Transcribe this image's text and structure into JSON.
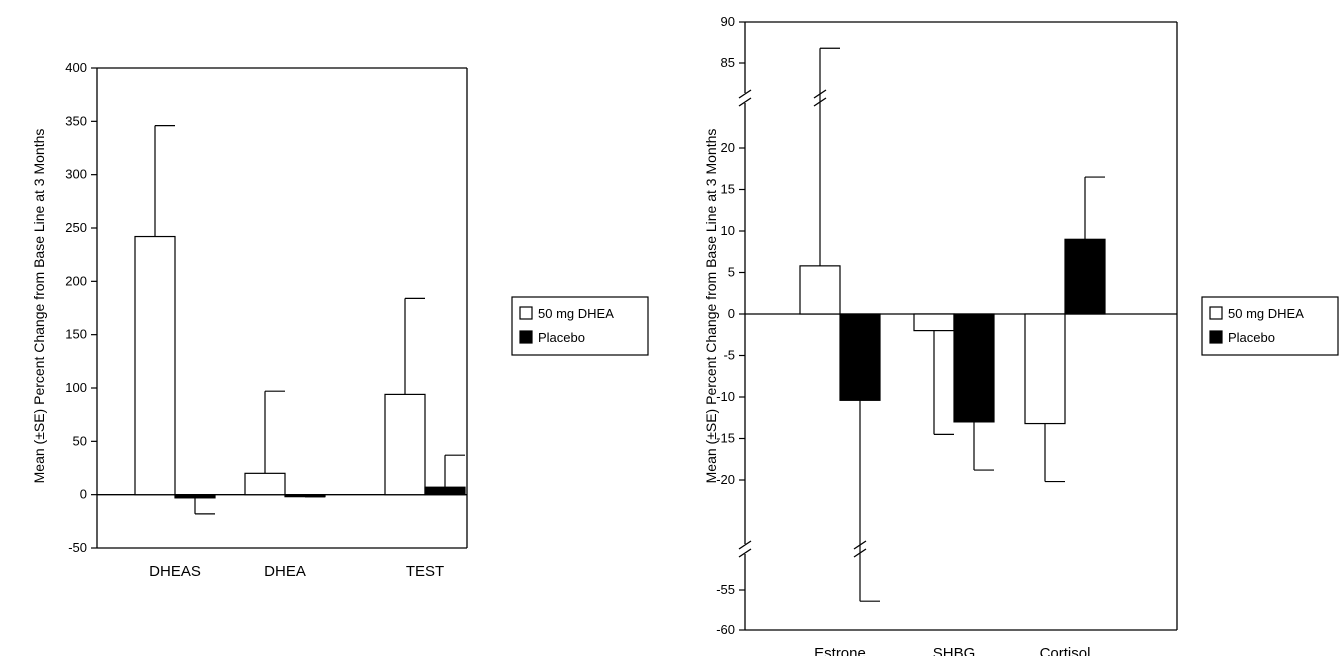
{
  "chart_data": [
    {
      "type": "bar",
      "title": "",
      "xlabel": "",
      "ylabel": "Mean (±SE) Percent Change from Base Line at 3 Months",
      "ylim": [
        -50,
        400
      ],
      "yticks": [
        -50,
        0,
        50,
        100,
        150,
        200,
        250,
        300,
        350,
        400
      ],
      "categories": [
        "DHEAS",
        "DHEA",
        "TEST"
      ],
      "legend_position": "right",
      "series": [
        {
          "name": "50 mg DHEA",
          "fill": "white",
          "values": [
            242,
            20,
            94
          ],
          "error_bars": [
            104,
            77,
            90
          ],
          "error_direction": "up"
        },
        {
          "name": "Placebo",
          "fill": "black",
          "values": [
            -3,
            -1,
            7
          ],
          "error_bars": [
            15,
            1,
            30
          ],
          "error_direction": "outward"
        }
      ]
    },
    {
      "type": "bar",
      "title": "",
      "xlabel": "",
      "ylabel": "Mean (±SE) Percent Change from Base Line at 3 Months",
      "ylim": [
        -60,
        90
      ],
      "axis_break": {
        "upper": [
          20,
          85
        ],
        "lower": [
          -55,
          -20
        ]
      },
      "yticks": [
        -60,
        -55,
        -20,
        -15,
        -10,
        -5,
        0,
        5,
        10,
        15,
        20,
        85,
        90
      ],
      "categories": [
        "Estrone",
        "SHBG",
        "Cortisol"
      ],
      "legend_position": "right",
      "series": [
        {
          "name": "50 mg DHEA",
          "fill": "white",
          "values": [
            5.8,
            -2,
            -13.2
          ],
          "error_bars": [
            81,
            12.5,
            7.3
          ],
          "error_direction": "outward"
        },
        {
          "name": "Placebo",
          "fill": "black",
          "values": [
            -10.4,
            -13,
            9
          ],
          "error_bars": [
            46,
            5.8,
            7.5
          ],
          "error_direction": "outward"
        }
      ]
    }
  ]
}
